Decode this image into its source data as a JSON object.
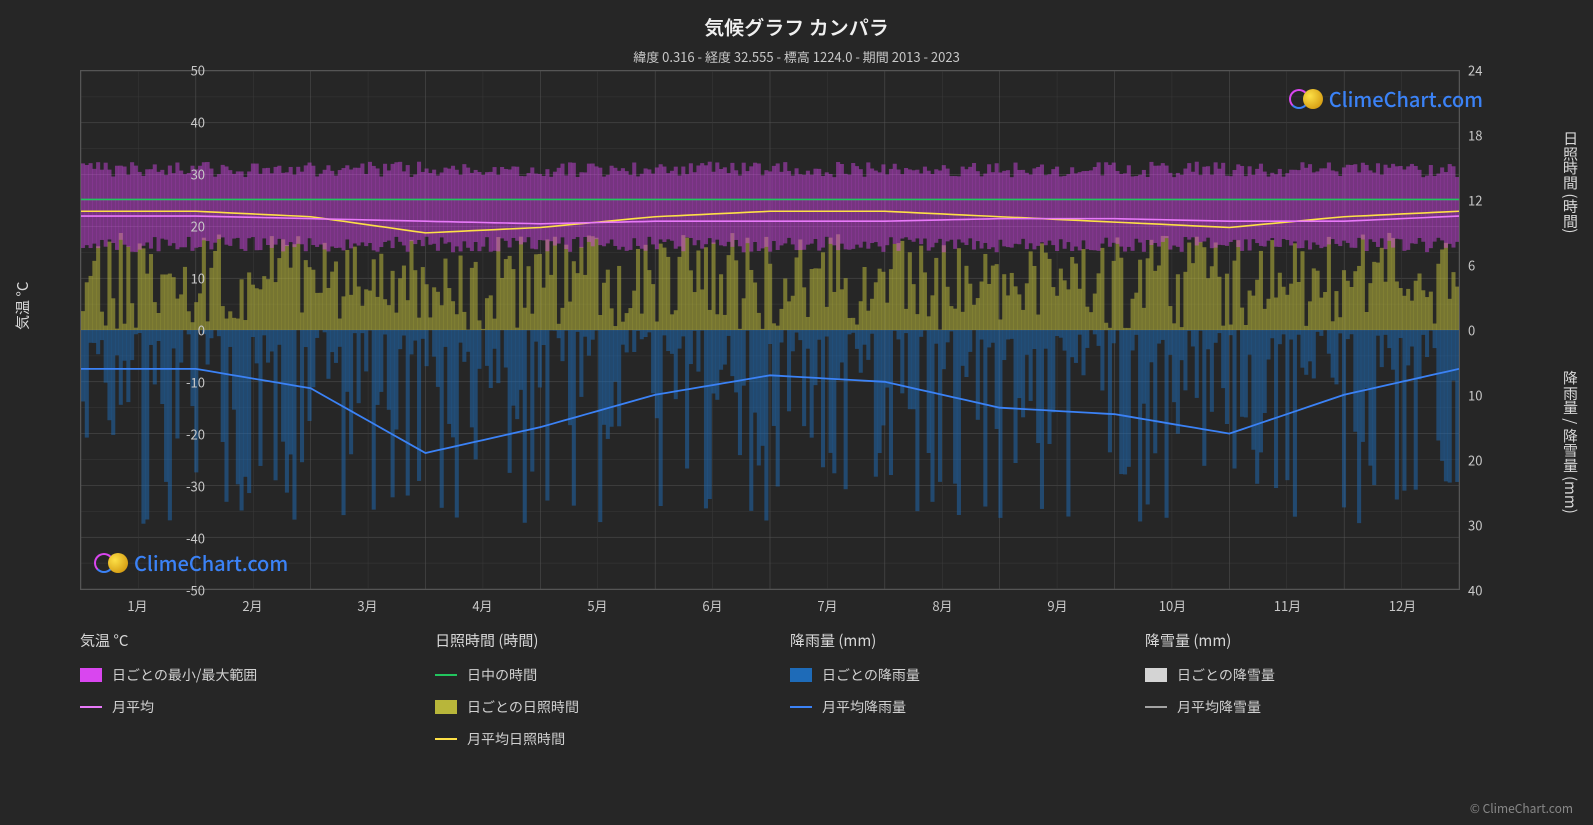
{
  "title": "気候グラフ カンパラ",
  "subtitle": "緯度 0.316 - 経度 32.555 - 標高 1224.0 - 期間 2013 - 2023",
  "attribution": "© ClimeChart.com",
  "watermark_text": "ClimeChart.com",
  "watermark_color": "#3b82f6",
  "axes": {
    "left_label": "気温 °C",
    "right_label_top": "日照時間 (時間)",
    "right_label_bottom": "降雨量 / 降雪量 (mm)",
    "left_ticks": [
      50,
      40,
      30,
      20,
      10,
      0,
      -10,
      -20,
      -30,
      -40,
      -50
    ],
    "right_ticks_top": [
      24,
      18,
      12,
      6,
      0
    ],
    "right_ticks_bottom": [
      0,
      10,
      20,
      30,
      40
    ],
    "x_labels": [
      "1月",
      "2月",
      "3月",
      "4月",
      "5月",
      "6月",
      "7月",
      "8月",
      "9月",
      "10月",
      "11月",
      "12月"
    ],
    "temp_min": -50,
    "temp_max": 50,
    "daylight_min": 0,
    "daylight_max": 24,
    "rain_min": 0,
    "rain_max": 40
  },
  "colors": {
    "background": "#262626",
    "grid": "#555555",
    "grid_minor": "#3a3a3a",
    "temp_band": "#d946ef",
    "temp_avg_line": "#e879f9",
    "daylight_line": "#22c55e",
    "sunshine_band": "#b8b63a",
    "sunshine_avg_line": "#fde047",
    "rain_band": "#1e6bb8",
    "rain_avg_line": "#3b82f6",
    "snow_band": "#d4d4d4",
    "snow_avg_line": "#a3a3a3",
    "text": "#d8d8d8"
  },
  "chart": {
    "months": 12,
    "temp_band_low": 16,
    "temp_band_high": 31,
    "temp_avg": [
      22.0,
      22.0,
      21.5,
      21.0,
      20.5,
      21.0,
      21.0,
      21.0,
      21.5,
      21.5,
      21.0,
      21.0
    ],
    "daylight_hours": [
      12.1,
      12.1,
      12.1,
      12.1,
      12.1,
      12.1,
      12.1,
      12.1,
      12.1,
      12.1,
      12.1,
      12.1
    ],
    "sunshine_band_low": 0,
    "sunshine_band_high": 9,
    "sunshine_avg": [
      11.0,
      11.0,
      10.5,
      9.0,
      9.5,
      10.5,
      11.0,
      11.0,
      10.5,
      10.0,
      9.5,
      10.5
    ],
    "rain_band_low_mm": 0,
    "rain_band_high_mm": 30,
    "rain_avg_mm": [
      6.0,
      6.0,
      9.0,
      19.0,
      15.0,
      10.0,
      7.0,
      8.0,
      12.0,
      13.0,
      16.0,
      10.0
    ]
  },
  "legend": {
    "col1_title": "気温 °C",
    "col1_items": [
      {
        "swatch": "temp_band",
        "label": "日ごとの最小/最大範囲",
        "type": "swatch"
      },
      {
        "swatch": "temp_avg_line",
        "label": "月平均",
        "type": "line"
      }
    ],
    "col2_title": "日照時間 (時間)",
    "col2_items": [
      {
        "swatch": "daylight_line",
        "label": "日中の時間",
        "type": "line"
      },
      {
        "swatch": "sunshine_band",
        "label": "日ごとの日照時間",
        "type": "swatch"
      },
      {
        "swatch": "sunshine_avg_line",
        "label": "月平均日照時間",
        "type": "line"
      }
    ],
    "col3_title": "降雨量 (mm)",
    "col3_items": [
      {
        "swatch": "rain_band",
        "label": "日ごとの降雨量",
        "type": "swatch"
      },
      {
        "swatch": "rain_avg_line",
        "label": "月平均降雨量",
        "type": "line"
      }
    ],
    "col4_title": "降雪量 (mm)",
    "col4_items": [
      {
        "swatch": "snow_band",
        "label": "日ごとの降雪量",
        "type": "swatch"
      },
      {
        "swatch": "snow_avg_line",
        "label": "月平均降雪量",
        "type": "line"
      }
    ]
  }
}
